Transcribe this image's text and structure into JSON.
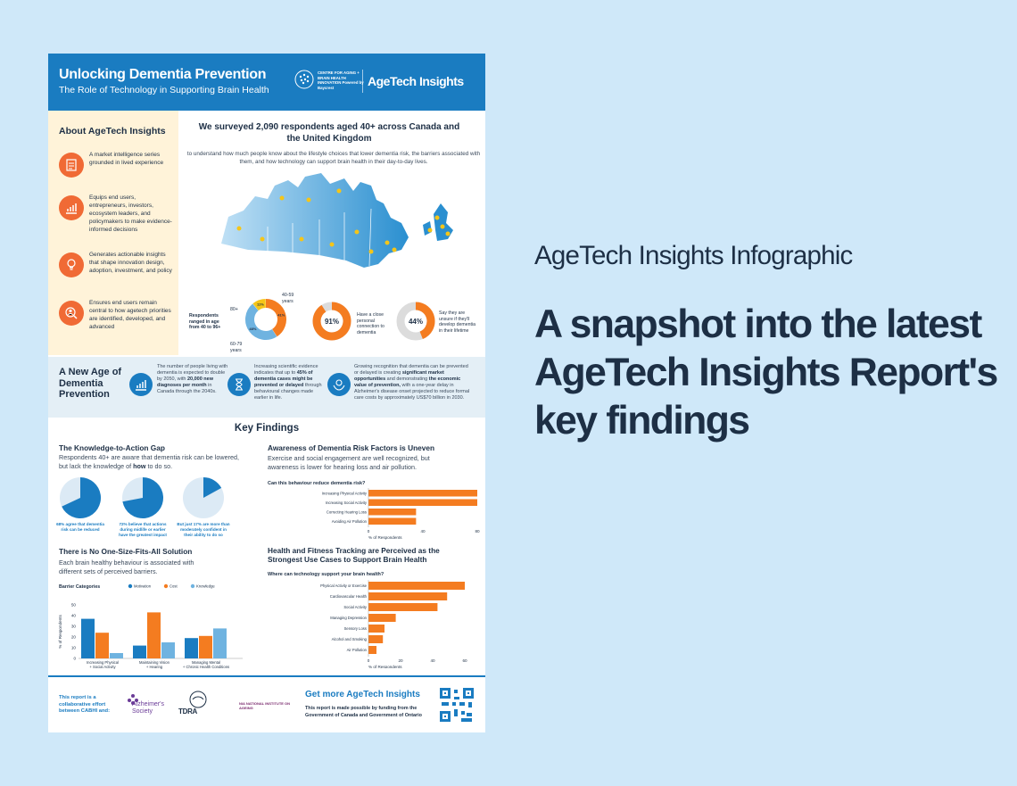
{
  "header": {
    "title": "Unlocking Dementia Prevention",
    "subtitle": "The Role of Technology in Supporting Brain Health",
    "partner_logo_text": "CENTRE FOR AGING + BRAIN HEALTH INNOVATION Powered by Baycrest",
    "brand": "AgeTech Insights"
  },
  "about": {
    "heading": "About AgeTech Insights",
    "items": [
      {
        "icon": "report-icon",
        "text": "A market intelligence series grounded in lived experience"
      },
      {
        "icon": "growth-chart-icon",
        "text": "Equips end users, entrepreneurs, investors, ecosystem leaders, and policymakers to make evidence-informed decisions"
      },
      {
        "icon": "lightbulb-icon",
        "text": "Generates actionable insights that shape innovation design, adoption, investment, and policy"
      },
      {
        "icon": "user-search-icon",
        "text": "Ensures end users remain central to how agetech priorities are identified, developed, and advanced"
      }
    ]
  },
  "survey": {
    "heading": "We surveyed 2,090 respondents aged 40+ across Canada and the United Kingdom",
    "subheading": "to understand how much people know about the lifestyle choices that lower dementia risk, the barriers associated with them, and how technology can support brain health in their day-to-day lives.",
    "age_caption": "Respondents ranged in age from 40 to 96+",
    "age_groups": [
      {
        "label": "80+",
        "percent": 11,
        "value_label": "11%",
        "color": "#f5c518"
      },
      {
        "label": "40-59 years",
        "percent": 41,
        "value_label": "41%",
        "color": "#f47c20"
      },
      {
        "label": "60-79 years",
        "percent": 48,
        "value_label": "48%",
        "color": "#6fb3e0"
      }
    ],
    "stat1": {
      "value": 91,
      "value_label": "91%",
      "caption": "Have a close personal connection to dementia"
    },
    "stat2": {
      "value": 44,
      "value_label": "44%",
      "caption": "Say they are unsure if they'll develop dementia in their lifetime"
    }
  },
  "new_age": {
    "heading": "A New Age of Dementia Prevention",
    "items": [
      {
        "icon": "rising-bars-icon",
        "pre": "The number of people living with dementia is expected to double by 2050, with",
        "bold": "20,000 new diagnoses per month",
        "post": "in Canada through the 2040s."
      },
      {
        "icon": "hourglass-icon",
        "pre": "Increasing scientific evidence indicates that up to",
        "bold": "45% of dementia cases might be prevented or delayed",
        "post": "through behavioural changes made earlier in life."
      },
      {
        "icon": "hands-brain-icon",
        "pre": "Growing recognition that dementia can be prevented or delayed is creating",
        "bold": "significant market opportunities",
        "mid": "and demonstrating",
        "bold2": "the economic value of prevention,",
        "post": "with a one-year delay in Alzheimer's disease onset projected to reduce formal care costs by approximately US$70 billion in 2030."
      }
    ]
  },
  "key_findings": {
    "heading": "Key Findings",
    "gap": {
      "heading": "The Knowledge-to-Action Gap",
      "text_pre": "Respondents 40+ are aware that dementia risk can be lowered, but lack the knowledge of",
      "text_bold": "how",
      "text_post": "to do so.",
      "pies": [
        {
          "percent": 68,
          "caption": "68% agree that dementia risk can be reduced"
        },
        {
          "percent": 72,
          "caption": "72% believe that actions during midlife or earlier have the greatest impact"
        },
        {
          "percent": 17,
          "caption": "But just 17% are more than moderately confident in their ability to do so"
        }
      ]
    },
    "barriers": {
      "heading": "There is No One-Size-Fits-All Solution",
      "text": "Each brain healthy behaviour is associated with different sets of perceived barriers."
    },
    "awareness": {
      "heading": "Awareness of Dementia Risk Factors is Uneven",
      "text": "Exercise and social engagement are well recognized, but awareness is lower for hearing loss and air pollution."
    },
    "health": {
      "heading": "Health and Fitness Tracking are Perceived as the Strongest Use Cases to Support Brain Health"
    }
  },
  "chart_data": [
    {
      "type": "bar",
      "orientation": "horizontal",
      "title": "Can this behaviour reduce dementia risk?",
      "categories": [
        "Increasing Physical Activity",
        "Increasing Social Activity",
        "Correcting Hearing Loss",
        "Avoiding Air Pollution"
      ],
      "values": [
        80,
        80,
        35,
        35
      ],
      "xlabel": "% of Respondents",
      "xticks": [
        "0",
        "40",
        "80"
      ],
      "xlim": [
        0,
        80
      ],
      "color": "#f47c20"
    },
    {
      "type": "bar",
      "orientation": "horizontal",
      "title": "Where can technology support your brain health?",
      "categories": [
        "Physical Activity or Exercise",
        "Cardiovascular Health",
        "Social Activity",
        "Managing Depression",
        "Sensory Loss",
        "Alcohol and Smoking",
        "Air Pollution"
      ],
      "values": [
        60,
        49,
        43,
        17,
        10,
        9,
        5
      ],
      "xlabel": "% of Respondents",
      "xticks": [
        "0",
        "20",
        "40",
        "60"
      ],
      "xlim": [
        0,
        60
      ],
      "color": "#f47c20"
    },
    {
      "type": "bar",
      "title": "Barrier Categories",
      "categories": [
        "Increasing Physical + Social Activity",
        "Maintaining Vision + Hearing",
        "Managing Mental + Chronic Health Conditions"
      ],
      "series": [
        {
          "name": "Motivation",
          "values": [
            37,
            12,
            19
          ],
          "color": "#1a7cc1"
        },
        {
          "name": "Cost",
          "values": [
            24,
            43,
            21
          ],
          "color": "#f47c20"
        },
        {
          "name": "Knowledge",
          "values": [
            5,
            15,
            28
          ],
          "color": "#6fb3e0"
        }
      ],
      "ylabel": "% of Respondents",
      "yticks": [
        "0",
        "10",
        "20",
        "30",
        "40",
        "50"
      ],
      "ylim": [
        0,
        50
      ]
    }
  ],
  "footer": {
    "collab": "This report is a collaborative effort between CABHI and:",
    "partners": [
      "Alzheimer's Society",
      "TDRA",
      "NIA NATIONAL INSTITUTE ON AGEING"
    ],
    "cta": "Get more AgeTech Insights",
    "funding": "This report is made possible by funding from the Government of Canada and Government of Ontario"
  },
  "right": {
    "title": "AgeTech Insights Infographic",
    "headline": "A snapshot into the latest AgeTech Insights Report's key findings"
  }
}
